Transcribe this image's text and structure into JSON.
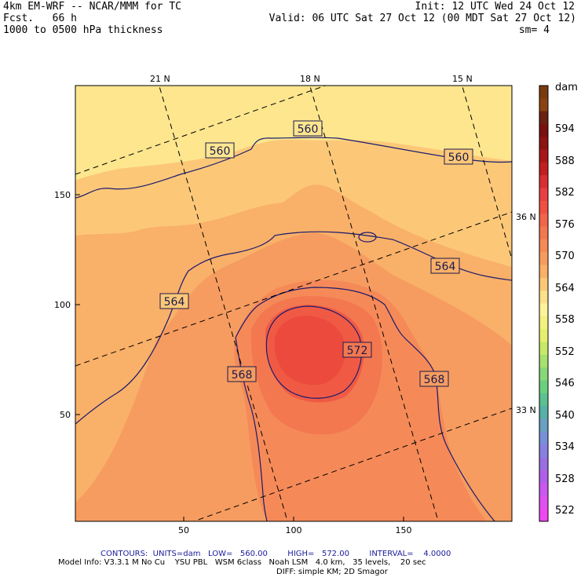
{
  "header": {
    "model": "4km EM-WRF -- NCAR/MMM for TC",
    "init": "Init: 12 UTC Wed 24 Oct 12",
    "forecast": "Fcst.   66 h",
    "valid": "Valid: 06 UTC Sat 27 Oct 12 (00 MDT Sat 27 Oct 12)",
    "field": "1000 to 0500 hPa thickness",
    "smoothing": "sm= 4"
  },
  "map": {
    "top_lon_labels": [
      "21 N",
      "18 N",
      "15 N"
    ],
    "right_lat_labels": [
      "36 N",
      "33 N"
    ],
    "left_y_ticks": [
      "150",
      "100",
      "50"
    ],
    "bottom_x_ticks": [
      "50",
      "100",
      "150"
    ],
    "contour_labels": [
      "560",
      "560",
      "560",
      "564",
      "564",
      "568",
      "568",
      "572"
    ]
  },
  "colorbar": {
    "unit": "dam",
    "labels": [
      "594",
      "588",
      "582",
      "576",
      "570",
      "564",
      "558",
      "552",
      "546",
      "540",
      "534",
      "528",
      "522"
    ],
    "colors": [
      "#7a3a10",
      "#8a4212",
      "#6b2010",
      "#7a1010",
      "#8e1212",
      "#a81818",
      "#c02020",
      "#d83030",
      "#e84040",
      "#f05040",
      "#f2654a",
      "#f37850",
      "#f58a58",
      "#f69c60",
      "#f9b068",
      "#fcc878",
      "#fde08a",
      "#fef29a",
      "#f2f080",
      "#e6ee70",
      "#c8e868",
      "#a8e070",
      "#88d878",
      "#6ccf80",
      "#5cc090",
      "#58b0a8",
      "#6aa0c0",
      "#7890d8",
      "#8880e0",
      "#9870e0",
      "#b060e8",
      "#c858ee",
      "#e050f0",
      "#f048f0"
    ]
  },
  "footer": {
    "contours": "CONTOURS:  UNITS=dam   LOW=   560.00        HIGH=   572.00        INTERVAL=    4.0000",
    "model_info": "Model Info: V3.3.1 M No Cu    YSU PBL   WSM 6class   Noah LSM   4.0 km,   35 levels,    20 sec",
    "diff": "DIFF: simple KM; 2D Smagor"
  }
}
